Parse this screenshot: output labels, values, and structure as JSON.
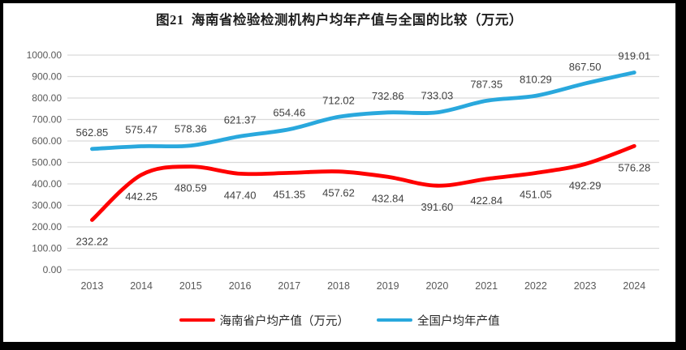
{
  "chart_data": {
    "type": "line",
    "title": "图21  海南省检验检测机构户均年产值与全国的比较（万元）",
    "categories": [
      "2013",
      "2014",
      "2015",
      "2016",
      "2017",
      "2018",
      "2019",
      "2020",
      "2021",
      "2022",
      "2023",
      "2024"
    ],
    "series": [
      {
        "name": "海南省户均产值（万元）",
        "key": "hainan",
        "color": "#ff0000",
        "label_position": "below",
        "values": [
          232.22,
          442.25,
          480.59,
          447.4,
          451.35,
          457.62,
          432.84,
          391.6,
          422.84,
          451.05,
          492.29,
          576.28
        ]
      },
      {
        "name": "全国户均年产值",
        "key": "national",
        "color": "#29a8dd",
        "label_position": "above",
        "values": [
          562.85,
          575.47,
          578.36,
          621.37,
          654.46,
          712.02,
          732.86,
          733.03,
          787.35,
          810.29,
          867.5,
          919.01
        ]
      }
    ],
    "ylim": [
      0,
      1000
    ],
    "ytick_step": 100,
    "ytick_decimals": 2,
    "grid": true,
    "legend_position": "bottom",
    "smoothed_lines": true,
    "colors": {
      "gridline": "#d9d9d9",
      "tick_label": "#595959",
      "data_label": "#404040",
      "title": "#1f1f1f",
      "frame_background": "#ffffff",
      "page_background": "#000000"
    }
  }
}
